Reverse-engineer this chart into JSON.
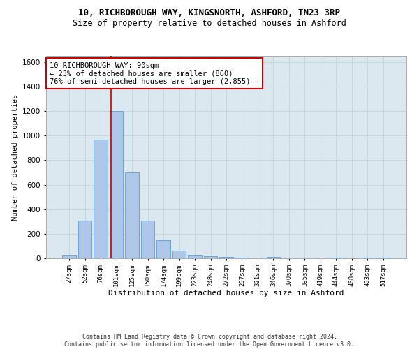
{
  "title": "10, RICHBOROUGH WAY, KINGSNORTH, ASHFORD, TN23 3RP",
  "subtitle": "Size of property relative to detached houses in Ashford",
  "xlabel": "Distribution of detached houses by size in Ashford",
  "ylabel": "Number of detached properties",
  "categories": [
    "27sqm",
    "52sqm",
    "76sqm",
    "101sqm",
    "125sqm",
    "150sqm",
    "174sqm",
    "199sqm",
    "223sqm",
    "248sqm",
    "272sqm",
    "297sqm",
    "321sqm",
    "346sqm",
    "370sqm",
    "395sqm",
    "419sqm",
    "444sqm",
    "468sqm",
    "493sqm",
    "517sqm"
  ],
  "values": [
    20,
    310,
    970,
    1200,
    700,
    310,
    150,
    65,
    25,
    15,
    10,
    5,
    0,
    10,
    0,
    0,
    0,
    5,
    0,
    5,
    5
  ],
  "bar_color": "#aec6e8",
  "bar_edge_color": "#5a9fd4",
  "vline_color": "#cc0000",
  "vline_x": 2.65,
  "annotation_line1": "10 RICHBOROUGH WAY: 90sqm",
  "annotation_line2": "← 23% of detached houses are smaller (860)",
  "annotation_line3": "76% of semi-detached houses are larger (2,855) →",
  "annotation_box_color": "#ffffff",
  "annotation_box_edge": "#cc0000",
  "footer_line1": "Contains HM Land Registry data © Crown copyright and database right 2024.",
  "footer_line2": "Contains public sector information licensed under the Open Government Licence v3.0.",
  "ylim": [
    0,
    1650
  ],
  "yticks": [
    0,
    200,
    400,
    600,
    800,
    1000,
    1200,
    1400,
    1600
  ],
  "grid_color": "#c8d4e0",
  "bg_color": "#dce8f0",
  "title_fontsize": 9,
  "subtitle_fontsize": 8.5,
  "xlabel_fontsize": 8,
  "ylabel_fontsize": 7.5,
  "xtick_fontsize": 6.5,
  "ytick_fontsize": 7.5,
  "annot_fontsize": 7.5,
  "footer_fontsize": 6
}
